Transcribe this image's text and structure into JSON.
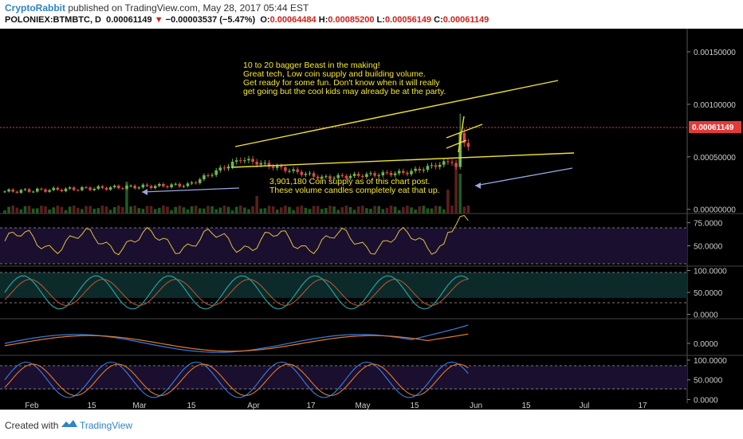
{
  "header": {
    "author": "CryptoRabbit",
    "published_text": " published on TradingView.com, May 28, 2017 05:44 EST",
    "symbol": "POLONIEX:BTMBTC, D",
    "last": "0.00061149",
    "change": "−0.00003537 (−5.47%)",
    "o_label": "O:",
    "o_value": "0.00064484",
    "h_label": "H:",
    "h_value": "0.00085200",
    "l_label": "L:",
    "l_value": "0.00056149",
    "c_label": "C:",
    "c_value": "0.00061149"
  },
  "footer": {
    "created_with": "Created with",
    "brand": "TradingView"
  },
  "colors": {
    "background": "#000000",
    "up": "#6fb64c",
    "down": "#d84a4a",
    "trend": "#f0e22d",
    "annotation": "#f5e82a",
    "arrow": "#9aa6e0",
    "price_tag": "#e23a3a",
    "panel_fill": "#1a0f2e"
  },
  "chart_data": {
    "type": "candlestick",
    "x_ticks": [
      "Feb",
      "15",
      "Mar",
      "15",
      "Apr",
      "17",
      "May",
      "15",
      "Jun",
      "15",
      "Jul",
      "17"
    ],
    "price_axis_ticks": [
      "0.00150000",
      "0.00100000",
      "0.00050000",
      "0.00000000"
    ],
    "price_ylim": [
      -4e-05,
      0.00172
    ],
    "last_price_label": "0.00061149",
    "annotation_top": [
      "10 to 20 bagger Beast in the making!",
      "Great tech, Low coin supply and building volume.",
      "Get ready for some fun. Don't know when it will really",
      "get going but the cool kids may already be at the party."
    ],
    "annotation_bottom": [
      "3,901,180 Coin supply as of this chart post.",
      "These volume candles completely eat that up."
    ],
    "rsi_axis_ticks": [
      "75.0000",
      "50.0000"
    ],
    "rsi_ylim": [
      28,
      85
    ],
    "osc_axis_ticks": [
      "100.0000",
      "50.0000",
      "0.0000"
    ],
    "osc_ylim": [
      -10,
      110
    ],
    "macd_axis_ticks": [
      "0.0000"
    ],
    "stoch_axis_ticks": [
      "100.0000",
      "50.0000",
      "0.0000"
    ],
    "stoch_ylim": [
      -5,
      108
    ]
  }
}
